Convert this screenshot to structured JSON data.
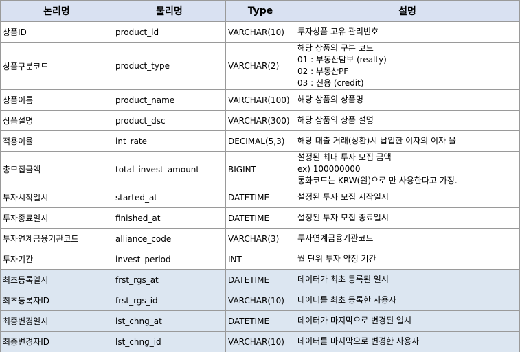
{
  "headers": [
    "논리명",
    "물리명",
    "Type",
    "설명"
  ],
  "rows": [
    {
      "logical": "상품ID",
      "physical": "product_id",
      "type": "VARCHAR(10)",
      "desc": [
        "투자상품 고유 관리번호"
      ]
    },
    {
      "logical": "상품구분코드",
      "physical": "product_type",
      "type": "VARCHAR(2)",
      "desc": [
        "해당 상품의 구분 코드",
        "01 : 부동산담보 (realty)",
        "02 : 부동산PF",
        "03 : 신용 (credit)"
      ]
    },
    {
      "logical": "상품이름",
      "physical": "product_name",
      "type": "VARCHAR(100)",
      "desc": [
        "해당 상품의 상품명"
      ]
    },
    {
      "logical": "상품설명",
      "physical": "product_dsc",
      "type": "VARCHAR(300)",
      "desc": [
        "해당 상품의 상품 설명"
      ]
    },
    {
      "logical": "적용이율",
      "physical": "int_rate",
      "type": "DECIMAL(5,3)",
      "desc": [
        "해당 대출 거래(상환)시 납입한 이자의 이자 율"
      ]
    },
    {
      "logical": "총모집금액",
      "physical": "total_invest_amount",
      "type": "BIGINT",
      "desc": [
        "설정된 최대 투자 모집 금액",
        "ex) 100000000",
        "통화코드는 KRW(원)으로 만 사용한다고 가정."
      ]
    },
    {
      "logical": "투자시작일시",
      "physical": "started_at",
      "type": "DATETIME",
      "desc": [
        "설정된 투자 모집 시작일시"
      ]
    },
    {
      "logical": "투자종료일시",
      "physical": "finished_at",
      "type": "DATETIME",
      "desc": [
        "설정된 투자 모집 종료일시"
      ]
    },
    {
      "logical": "투자연계금융기관코드",
      "physical": "alliance_code",
      "type": "VARCHAR(3)",
      "desc": [
        "투자연계금융기관코드"
      ]
    },
    {
      "logical": "투자기간",
      "physical": "invest_period",
      "type": "INT",
      "desc": [
        "월 단위 투자 약정 기간"
      ]
    },
    {
      "logical": "최초등록일시",
      "physical": "frst_rgs_at",
      "type": "DATETIME",
      "desc": [
        "데이터가 최초 등록된 일시"
      ],
      "highlight": true
    },
    {
      "logical": "최초등록자ID",
      "physical": "frst_rgs_id",
      "type": "VARCHAR(10)",
      "desc": [
        "데이터를 최초 등록한 사용자"
      ],
      "highlight": true
    },
    {
      "logical": "최종변경일시",
      "physical": "lst_chng_at",
      "type": "DATETIME",
      "desc": [
        "데이터가 마지막으로 변경된 일시"
      ],
      "highlight": true
    },
    {
      "logical": "최종변경자ID",
      "physical": "lst_chng_id",
      "type": "VARCHAR(10)",
      "desc": [
        "데이터를 마지막으로 변경한 사용자"
      ],
      "highlight": true
    }
  ],
  "colors": {
    "header_bg": "#d9e1f2",
    "meta_row_bg": "#dce6f1",
    "border": "#9a9a9a"
  }
}
